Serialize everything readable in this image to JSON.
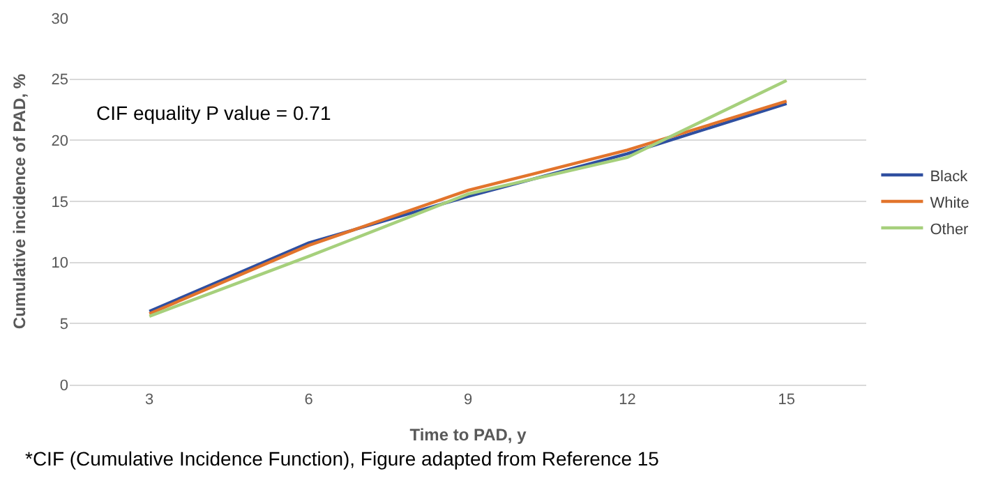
{
  "chart_data": {
    "type": "line",
    "xlabel": "Time to PAD, y",
    "ylabel": "Cumulative incidence of PAD, %",
    "categories": [
      "3",
      "6",
      "9",
      "12",
      "15"
    ],
    "series": [
      {
        "name": "Black",
        "color": "#2f4fa0",
        "values": [
          6.0,
          11.6,
          15.4,
          18.9,
          23.0
        ]
      },
      {
        "name": "White",
        "color": "#e2742c",
        "values": [
          5.8,
          11.4,
          15.9,
          19.2,
          23.2
        ]
      },
      {
        "name": "Other",
        "color": "#a6d07c",
        "values": [
          5.6,
          10.5,
          15.6,
          18.6,
          24.9
        ]
      }
    ],
    "ylim": [
      0,
      30
    ],
    "yticks": [
      0,
      5,
      10,
      15,
      20,
      25,
      30
    ],
    "grid": "y",
    "legend": "right",
    "marker": "none",
    "annotations": [
      "CIF equality P value = 0.71",
      "*CIF (Cumulative Incidence Function), Figure adapted from Reference 15"
    ]
  }
}
